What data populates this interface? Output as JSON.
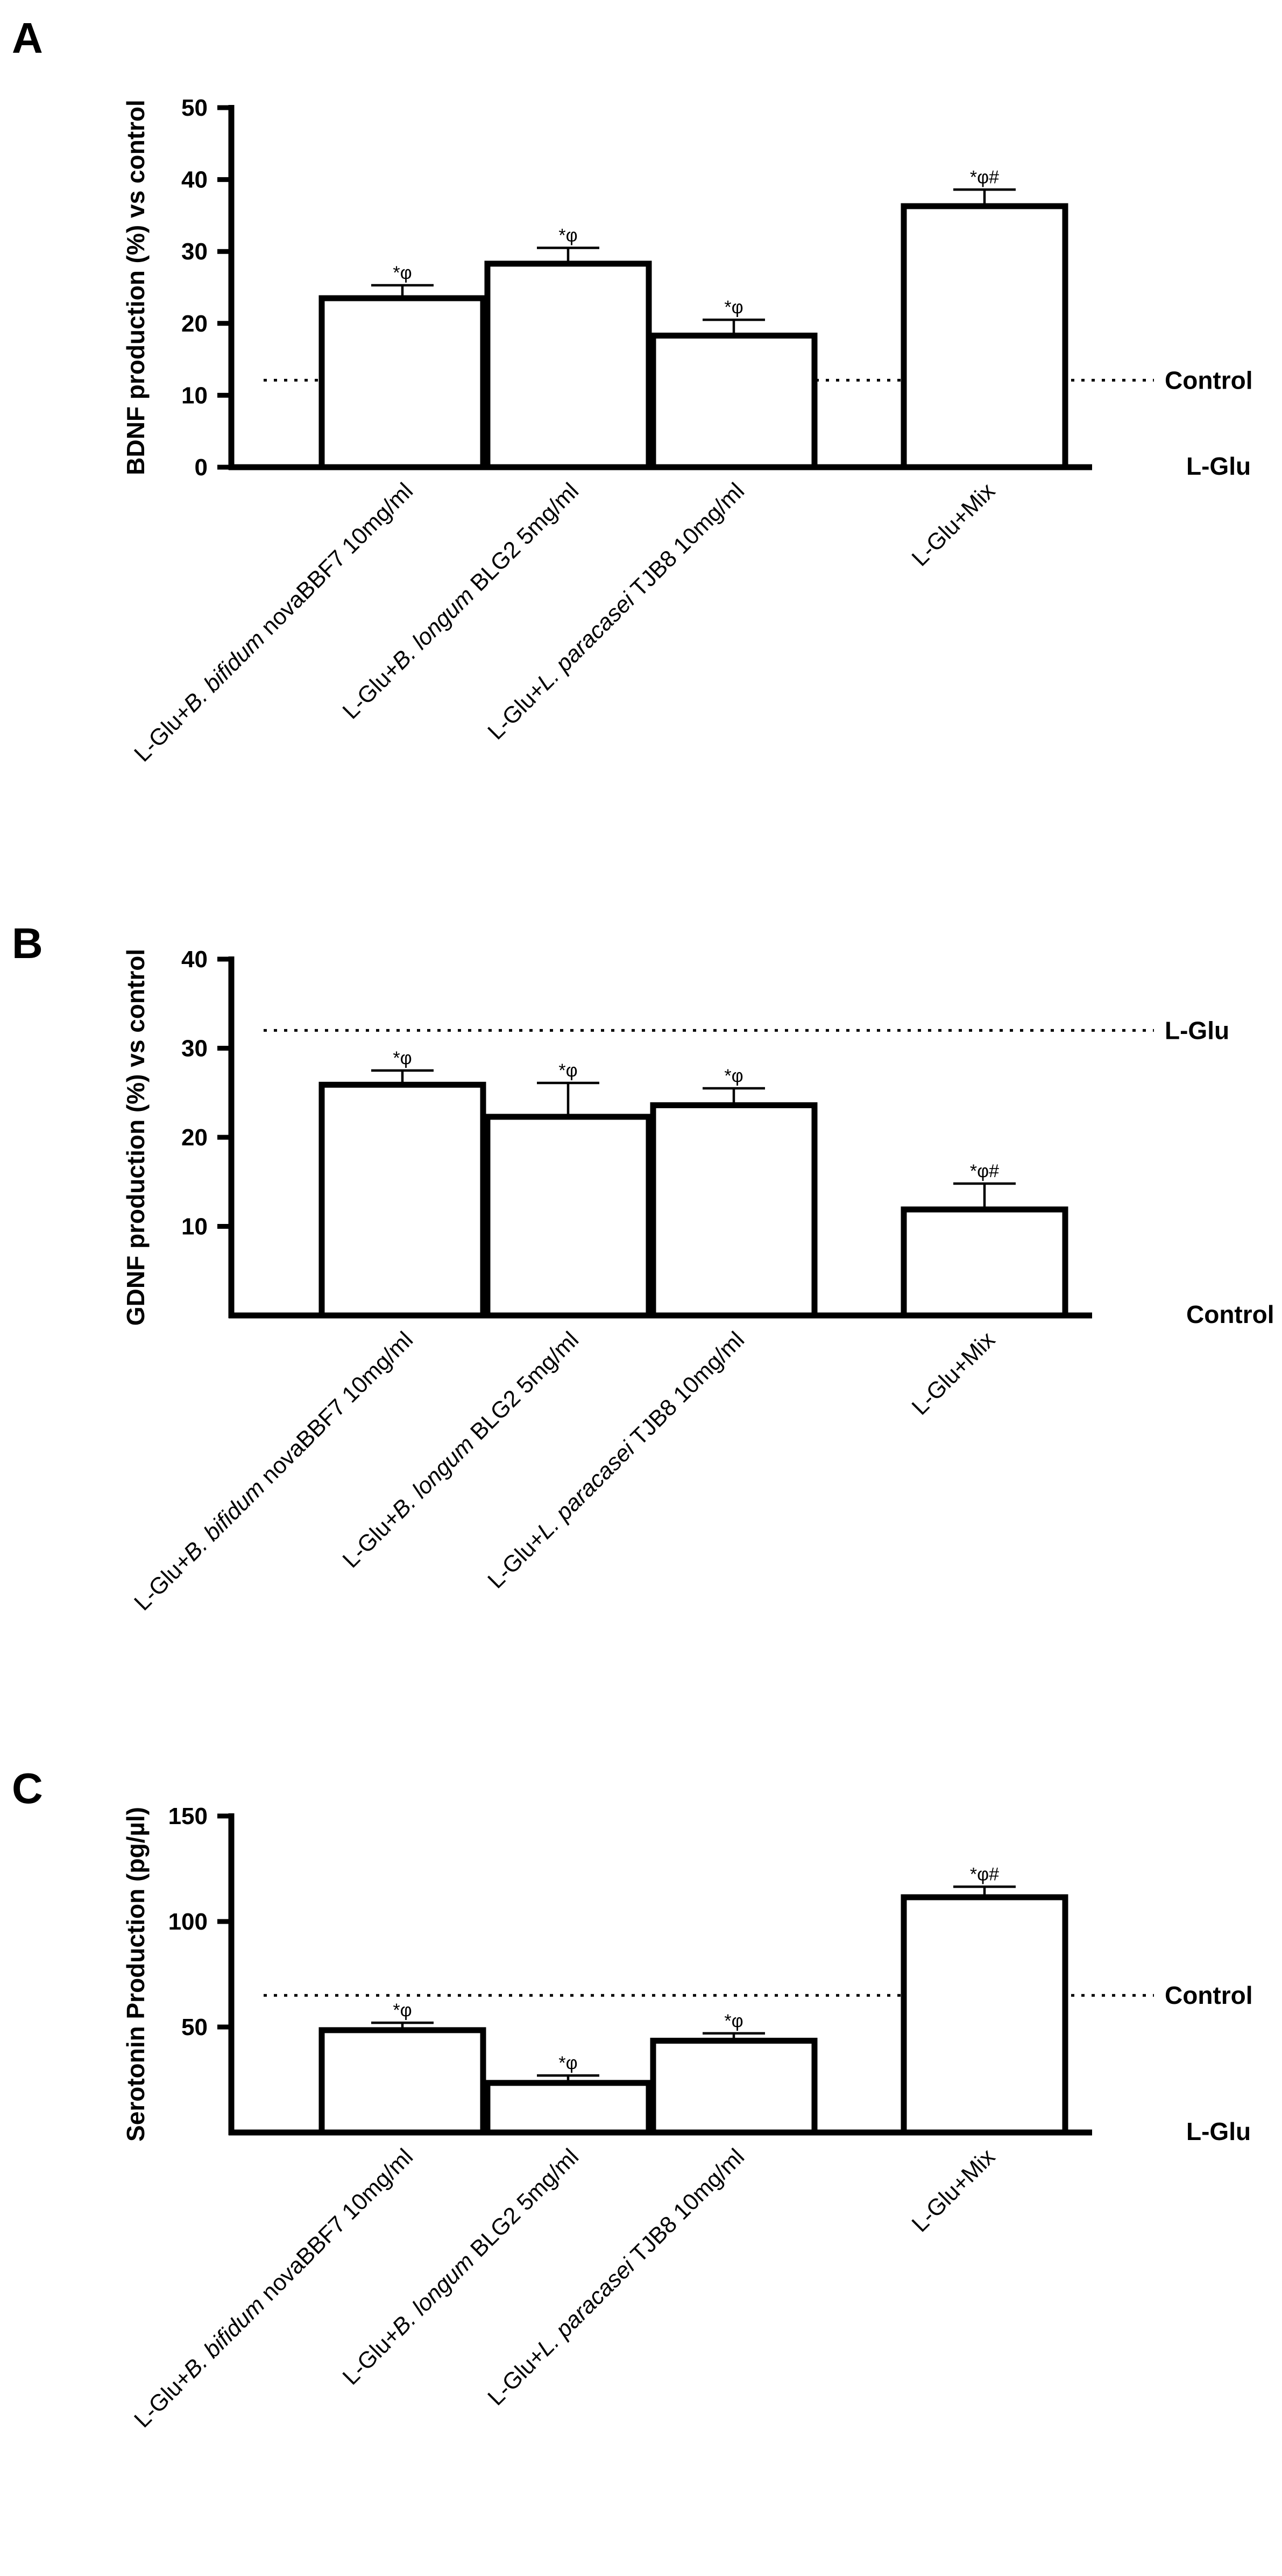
{
  "chart_data": [
    {
      "panel": "A",
      "type": "bar",
      "ylabel": "BDNF production (%) vs control",
      "ylim": [
        0,
        50
      ],
      "yticks": [
        0,
        10,
        20,
        30,
        40,
        50
      ],
      "categories": [
        [
          {
            "t": "L-Glu+"
          },
          {
            "t": "B. bifidum",
            "i": true
          },
          {
            "t": " novaBBF7 10mg/ml"
          }
        ],
        [
          {
            "t": "L-Glu+"
          },
          {
            "t": "B. longum",
            "i": true
          },
          {
            "t": " BLG2 5mg/ml"
          }
        ],
        [
          {
            "t": "L-Glu+"
          },
          {
            "t": "L. paracasei",
            "i": true
          },
          {
            "t": " TJB8 10mg/ml"
          }
        ],
        [
          {
            "t": "L-Glu+Mix"
          }
        ]
      ],
      "values": [
        23.5,
        28.3,
        18.3,
        36.3
      ],
      "errors": [
        1.8,
        2.2,
        2.2,
        2.3
      ],
      "annotations": [
        "*φ",
        "*φ",
        "*φ",
        "*φ#"
      ],
      "reference_lines": [
        {
          "label": "Control",
          "value": 12.1,
          "dotted": true
        }
      ],
      "baseline_label": "L-Glu"
    },
    {
      "panel": "B",
      "type": "bar",
      "ylabel": "GDNF production (%) vs control",
      "ylim": [
        0,
        40
      ],
      "yticks": [
        10,
        20,
        30,
        40
      ],
      "categories": [
        [
          {
            "t": "L-Glu+"
          },
          {
            "t": "B. bifidum",
            "i": true
          },
          {
            "t": " novaBBF7 10mg/ml"
          }
        ],
        [
          {
            "t": "L-Glu+"
          },
          {
            "t": "B. longum",
            "i": true
          },
          {
            "t": " BLG2 5mg/ml"
          }
        ],
        [
          {
            "t": "L-Glu+"
          },
          {
            "t": "L. paracasei",
            "i": true
          },
          {
            "t": " TJB8 10mg/ml"
          }
        ],
        [
          {
            "t": "L-Glu+Mix"
          }
        ]
      ],
      "values": [
        25.9,
        22.3,
        23.6,
        11.9
      ],
      "errors": [
        1.6,
        3.8,
        1.9,
        2.9
      ],
      "annotations": [
        "*φ",
        "*φ",
        "*φ",
        "*φ#"
      ],
      "reference_lines": [
        {
          "label": "L-Glu",
          "value": 32.0,
          "dotted": true
        }
      ],
      "baseline_label": "Control"
    },
    {
      "panel": "C",
      "type": "bar",
      "ylabel": "Serotonin Production (pg/µl)",
      "ylim": [
        0,
        150
      ],
      "yticks": [
        50,
        100,
        150
      ],
      "categories": [
        [
          {
            "t": "L-Glu+"
          },
          {
            "t": "B. bifidum",
            "i": true
          },
          {
            "t": " novaBBF7 10mg/ml"
          }
        ],
        [
          {
            "t": "L-Glu+"
          },
          {
            "t": "B. longum",
            "i": true
          },
          {
            "t": " BLG2 5mg/ml"
          }
        ],
        [
          {
            "t": "L-Glu+"
          },
          {
            "t": "L. paracasei",
            "i": true
          },
          {
            "t": " TJB8 10mg/ml"
          }
        ],
        [
          {
            "t": "L-Glu+Mix"
          }
        ]
      ],
      "values": [
        48.5,
        23.5,
        43.5,
        111.5
      ],
      "errors": [
        3.5,
        3.5,
        3.5,
        5.0
      ],
      "annotations": [
        "*φ",
        "*φ",
        "*φ",
        "*φ#"
      ],
      "reference_lines": [
        {
          "label": "Control",
          "value": 65.0,
          "dotted": true
        }
      ],
      "baseline_label": "L-Glu"
    }
  ]
}
